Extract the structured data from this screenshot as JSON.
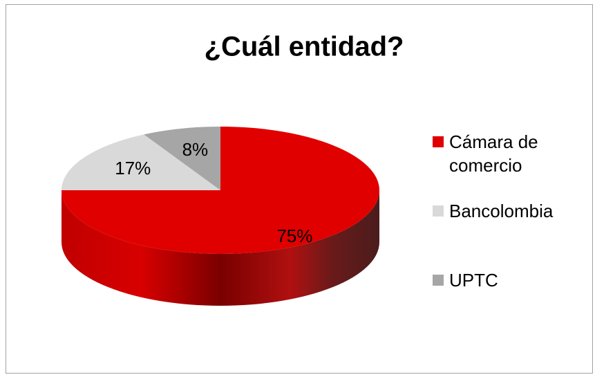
{
  "chart_data": {
    "type": "pie",
    "title": "¿Cuál entidad?",
    "categories": [
      "Cámara de comercio",
      "Bancolombia",
      "UPTC"
    ],
    "values": [
      75,
      17,
      8
    ],
    "value_labels": [
      "75%",
      "17%",
      "8%"
    ],
    "colors": [
      "#e00000",
      "#d9d9d9",
      "#a6a6a6"
    ],
    "legend": "right"
  }
}
